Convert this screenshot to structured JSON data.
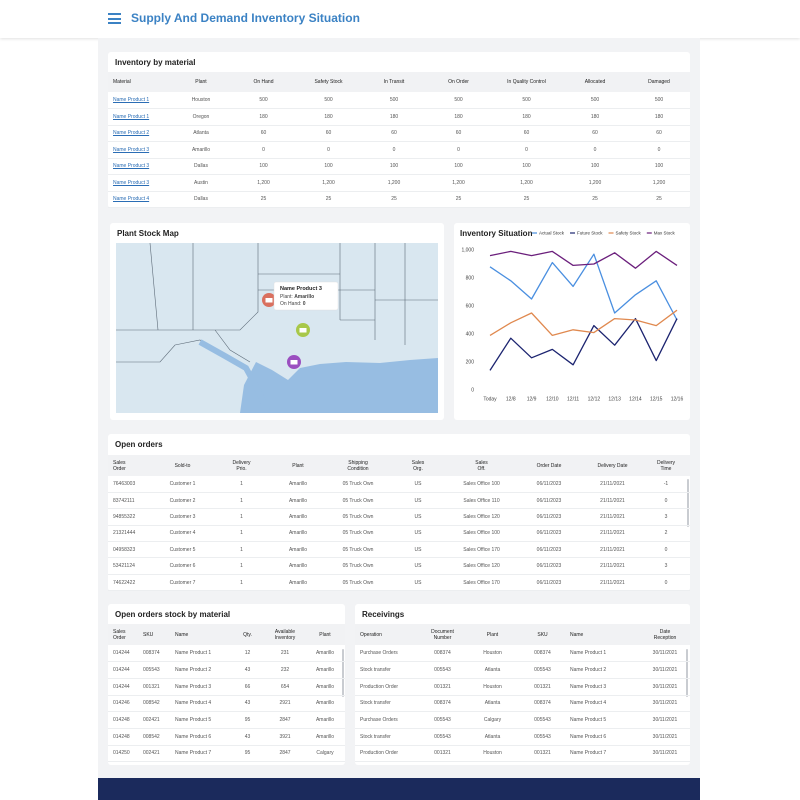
{
  "header": {
    "title": "Supply And Demand Inventory Situation"
  },
  "inventory": {
    "title": "Inventory by material",
    "columns": [
      "Material",
      "Plant",
      "On Hand",
      "Safety Stock",
      "In Transit",
      "On Order",
      "In Quality Control",
      "Allocated",
      "Damaged"
    ],
    "rows": [
      [
        "Name Product 1",
        "Houston",
        "500",
        "500",
        "500",
        "500",
        "500",
        "500",
        "500"
      ],
      [
        "Name Product 1",
        "Oregon",
        "180",
        "180",
        "180",
        "180",
        "180",
        "180",
        "180"
      ],
      [
        "Name Product 2",
        "Atlanta",
        "60",
        "60",
        "60",
        "60",
        "60",
        "60",
        "60"
      ],
      [
        "Name Product 3",
        "Amarillo",
        "0",
        "0",
        "0",
        "0",
        "0",
        "0",
        "0"
      ],
      [
        "Name Product 3",
        "Dallas",
        "100",
        "100",
        "100",
        "100",
        "100",
        "100",
        "100"
      ],
      [
        "Name Product 3",
        "Austin",
        "1,200",
        "1,200",
        "1,200",
        "1,200",
        "1,200",
        "1,200",
        "1,200"
      ],
      [
        "Name Product 4",
        "Dallas",
        "25",
        "25",
        "25",
        "25",
        "25",
        "25",
        "25"
      ]
    ]
  },
  "map": {
    "title": "Plant Stock Map",
    "popup": {
      "title": "Name Product 3",
      "plant_label": "Plant:",
      "plant": "Amarillo",
      "on_hand_label": "On Hand:",
      "on_hand": "0"
    }
  },
  "chart_data": {
    "type": "line",
    "title": "Inventory Situation",
    "categories": [
      "Today",
      "12/8",
      "12/9",
      "12/10",
      "12/11",
      "12/12",
      "12/13",
      "12/14",
      "12/15",
      "12/16"
    ],
    "series": [
      {
        "name": "Actual Stock",
        "color": "#4a8fe0",
        "values": [
          880,
          780,
          650,
          910,
          740,
          970,
          550,
          680,
          780,
          500
        ]
      },
      {
        "name": "Future Stock",
        "color": "#1c2470",
        "values": [
          140,
          370,
          230,
          290,
          180,
          460,
          320,
          510,
          210,
          510
        ]
      },
      {
        "name": "Safety Stock",
        "color": "#e0894f",
        "values": [
          390,
          480,
          550,
          390,
          430,
          410,
          510,
          500,
          460,
          570
        ]
      },
      {
        "name": "Max Stock",
        "color": "#6b1f7c",
        "values": [
          960,
          990,
          960,
          990,
          890,
          900,
          980,
          870,
          990,
          890
        ]
      }
    ],
    "ylim": [
      0,
      1000
    ],
    "yticks": [
      0,
      200,
      400,
      600,
      800,
      {
        "value": 1000,
        "label": "1,000"
      }
    ],
    "legend_position": "top-right"
  },
  "open_orders": {
    "title": "Open orders",
    "columns": [
      [
        "Sales",
        "Order"
      ],
      "Sold-to",
      [
        "Delivery",
        "Prio."
      ],
      "Plant",
      [
        "Shipping",
        "Condition"
      ],
      [
        "Sales",
        "Org."
      ],
      [
        "Sales",
        "Off."
      ],
      "Order Date",
      "Delivery Date",
      [
        "Delivery",
        "Time"
      ]
    ],
    "rows": [
      [
        "76463003",
        "Customer 1",
        "1",
        "Amarillo",
        "05 Truck Own",
        "US",
        "Sales Office 100",
        "06/11/2023",
        "21/11/2021",
        "-1"
      ],
      [
        "83742111",
        "Customer 2",
        "1",
        "Amarillo",
        "05 Truck Own",
        "US",
        "Sales Office 110",
        "06/11/2023",
        "21/11/2021",
        "0"
      ],
      [
        "94855322",
        "Customer 3",
        "1",
        "Amarillo",
        "05 Truck Own",
        "US",
        "Sales Office 120",
        "06/11/2023",
        "21/11/2021",
        "3"
      ],
      [
        "21321444",
        "Customer 4",
        "1",
        "Amarillo",
        "05 Truck Own",
        "US",
        "Sales Office 100",
        "06/11/2023",
        "21/11/2021",
        "2"
      ],
      [
        "04958323",
        "Customer 5",
        "1",
        "Amarillo",
        "05 Truck Own",
        "US",
        "Sales Office 170",
        "06/11/2023",
        "21/11/2021",
        "0"
      ],
      [
        "53421124",
        "Customer 6",
        "1",
        "Amarillo",
        "05 Truck Own",
        "US",
        "Sales Office 120",
        "06/11/2023",
        "21/11/2021",
        "3"
      ],
      [
        "74622422",
        "Customer 7",
        "1",
        "Amarillo",
        "05 Truck Own",
        "US",
        "Sales Office 170",
        "06/11/2023",
        "21/11/2021",
        "0"
      ]
    ]
  },
  "stock_by_material": {
    "title": "Open orders stock by material",
    "columns": [
      [
        "Sales",
        "Order"
      ],
      "SKU",
      "Name",
      "Qty.",
      [
        "Available",
        "Inventory"
      ],
      "Plant"
    ],
    "rows": [
      [
        "014244",
        "008374",
        "Name Product 1",
        "12",
        "231",
        "Amarillo"
      ],
      [
        "014244",
        "005543",
        "Name Product 2",
        "43",
        "232",
        "Amarillo"
      ],
      [
        "014244",
        "001321",
        "Name Product 3",
        "66",
        "654",
        "Amarillo"
      ],
      [
        "014246",
        "008542",
        "Name Product 4",
        "43",
        "2921",
        "Amarillo"
      ],
      [
        "014248",
        "002421",
        "Name Product 5",
        "95",
        "2847",
        "Amarillo"
      ],
      [
        "014248",
        "008542",
        "Name Product 6",
        "43",
        "3921",
        "Amarillo"
      ],
      [
        "014250",
        "002421",
        "Name Product 7",
        "95",
        "2847",
        "Calgary"
      ]
    ]
  },
  "receivings": {
    "title": "Receivings",
    "columns": [
      "Operation",
      [
        "Document",
        "Number"
      ],
      "Plant",
      "SKU",
      "Name",
      [
        "Date",
        "Reception"
      ]
    ],
    "rows": [
      [
        "Purchase Orders",
        "008374",
        "Houston",
        "008374",
        "Name Product 1",
        "30/11/2021"
      ],
      [
        "Stock transfer",
        "005543",
        "Atlanta",
        "005543",
        "Name Product 2",
        "30/11/2021"
      ],
      [
        "Production Order",
        "001321",
        "Houston",
        "001321",
        "Name Product 3",
        "30/11/2021"
      ],
      [
        "Stock transfer",
        "008374",
        "Atlanta",
        "008374",
        "Name Product 4",
        "30/11/2021"
      ],
      [
        "Purchase Orders",
        "005543",
        "Calgary",
        "005543",
        "Name Product 5",
        "30/11/2021"
      ],
      [
        "Stock transfer",
        "005543",
        "Atlanta",
        "005543",
        "Name Product 6",
        "30/11/2021"
      ],
      [
        "Production Order",
        "001321",
        "Houston",
        "001321",
        "Name Product 7",
        "30/11/2021"
      ]
    ]
  }
}
